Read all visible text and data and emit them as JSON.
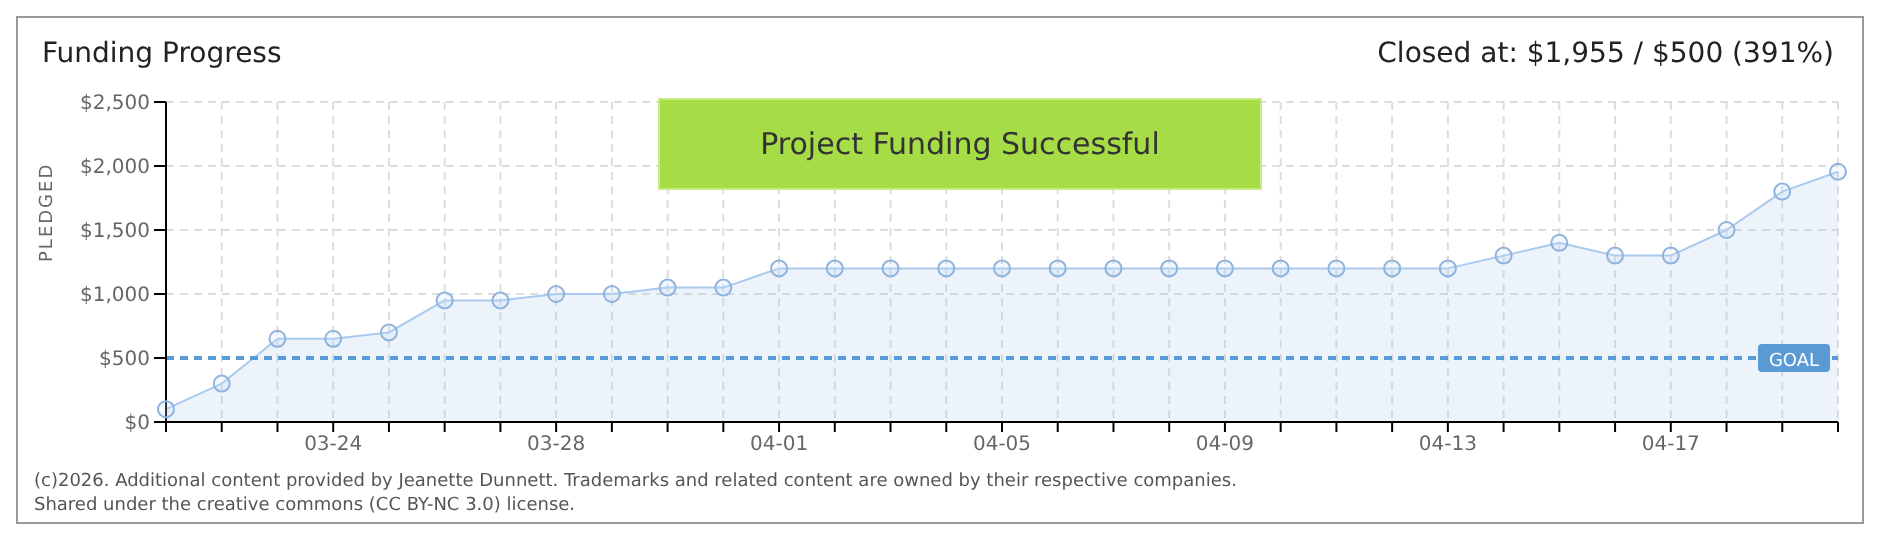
{
  "chart_data": {
    "type": "area",
    "title": "Funding Progress",
    "subtitle": "Closed at: $1,955 / $500 (391%)",
    "ylabel": "PLEDGED",
    "categories": [
      null,
      null,
      null,
      "03-24",
      null,
      null,
      null,
      "03-28",
      null,
      null,
      null,
      "04-01",
      null,
      null,
      null,
      "04-05",
      null,
      null,
      null,
      "04-09",
      null,
      null,
      null,
      "04-13",
      null,
      null,
      null,
      "04-17",
      null,
      null,
      null
    ],
    "series": [
      {
        "color": "#a9c9ee",
        "values": [
          100,
          300,
          650,
          650,
          700,
          950,
          950,
          1000,
          1000,
          1050,
          1050,
          1200,
          1200,
          1200,
          1200,
          1200,
          1200,
          1200,
          1200,
          1200,
          1200,
          1200,
          1200,
          1200,
          1300,
          1400,
          1300,
          1300,
          1500,
          1800,
          1955
        ]
      }
    ],
    "ylim": [
      0,
      2500
    ],
    "yticks": [
      {
        "value": 0,
        "label": "$0"
      },
      {
        "value": 500,
        "label": "$500"
      },
      {
        "value": 1000,
        "label": "$1,000"
      },
      {
        "value": 1500,
        "label": "$1,500"
      },
      {
        "value": 2000,
        "label": "$2,000"
      },
      {
        "value": 2500,
        "label": "$2,500"
      }
    ],
    "ref_lines": [
      {
        "axis": "y",
        "value": 500,
        "label": "GOAL",
        "color": "#5b9bd5",
        "line_style": "dashed"
      }
    ],
    "grid": true,
    "marker": "circle",
    "line_style": "solid",
    "annotations": [
      "Project Funding Successful",
      "(c)2026. Additional content provided by Jeanette Dunnett. Trademarks and related content are owned by their respective companies.",
      "Shared under the creative commons (CC BY-NC 3.0) license."
    ]
  }
}
